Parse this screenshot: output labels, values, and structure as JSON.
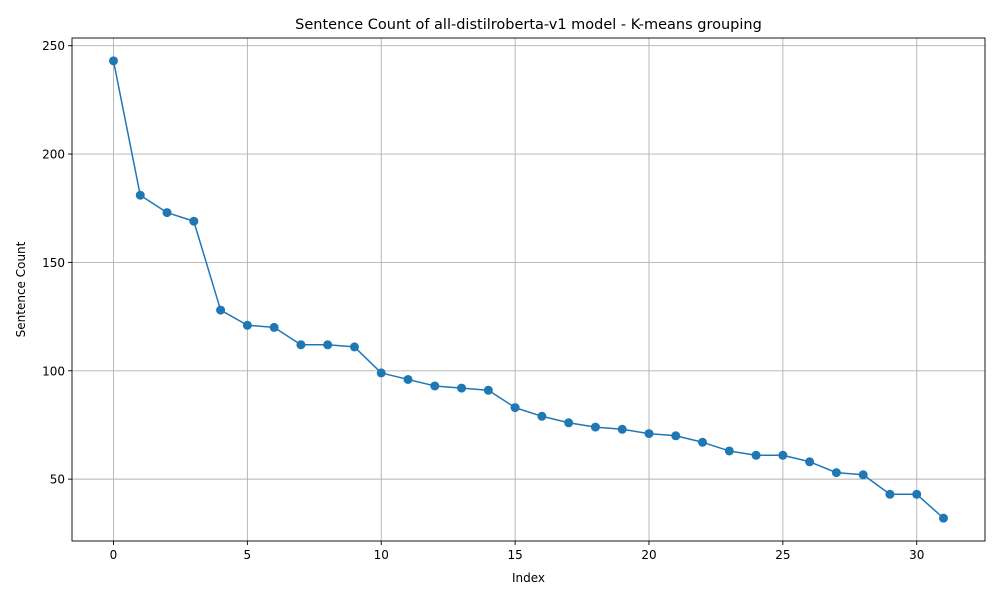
{
  "chart_data": {
    "type": "line",
    "title": "Sentence Count of all-distilroberta-v1 model - K-means grouping",
    "xlabel": "Index",
    "ylabel": "Sentence Count",
    "xlim": [
      -1.55,
      32.55
    ],
    "ylim": [
      21.45,
      253.55
    ],
    "xticks": [
      0,
      5,
      10,
      15,
      20,
      25,
      30
    ],
    "yticks": [
      50,
      100,
      150,
      200,
      250
    ],
    "grid": true,
    "series": [
      {
        "color": "#1f77b4",
        "marker": "circle",
        "x": [
          0,
          1,
          2,
          3,
          4,
          5,
          6,
          7,
          8,
          9,
          10,
          11,
          12,
          13,
          14,
          15,
          16,
          17,
          18,
          19,
          20,
          21,
          22,
          23,
          24,
          25,
          26,
          27,
          28,
          29,
          30,
          31
        ],
        "values": [
          243,
          181,
          173,
          169,
          128,
          121,
          120,
          112,
          112,
          111,
          99,
          96,
          93,
          92,
          91,
          83,
          79,
          76,
          74,
          73,
          71,
          70,
          67,
          63,
          61,
          61,
          58,
          53,
          52,
          43,
          43,
          32
        ]
      }
    ]
  }
}
